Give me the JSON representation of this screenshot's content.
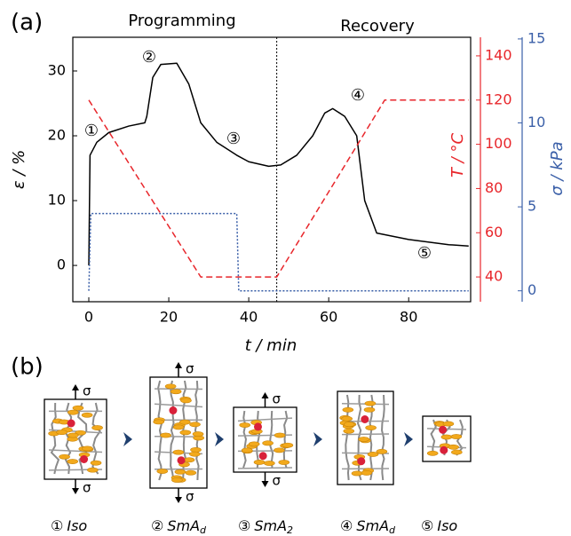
{
  "panel_labels": [
    "(a)",
    "(b)"
  ],
  "chart_data": {
    "type": "line",
    "xlabel": "t  / min",
    "ylabel": "ε / %",
    "y2label": "T / °C",
    "y3label": "σ / kPa",
    "xlim": [
      -4,
      95.5
    ],
    "xticks": [
      0,
      20,
      40,
      60,
      80
    ],
    "ylim": [
      -5.6,
      35.2
    ],
    "yticks": [
      0,
      10,
      20,
      30
    ],
    "y2lim": [
      28.8,
      148.4
    ],
    "y2ticks": [
      40,
      60,
      80,
      100,
      120,
      140
    ],
    "y3lim": [
      -0.65,
      15.1
    ],
    "y3ticks": [
      0,
      5,
      10,
      15
    ],
    "divider_x": 47,
    "phase_labels": [
      "Programming",
      "Recovery"
    ],
    "annotations": [
      "①",
      "②",
      "③",
      "④",
      "⑤"
    ],
    "series": [
      {
        "color": "#000000",
        "style": "solid",
        "x": [
          0,
          0.3,
          2,
          5,
          10,
          14,
          14.5,
          16,
          18,
          22,
          25,
          28,
          32,
          37,
          40,
          45,
          48,
          52,
          56,
          59,
          61,
          64,
          67,
          69,
          72,
          80,
          90,
          95
        ],
        "values": [
          0,
          17,
          19,
          20.5,
          21.5,
          22,
          23,
          29,
          31,
          31.2,
          28,
          22,
          19,
          17,
          16,
          15.3,
          15.5,
          17,
          20,
          23.5,
          24.2,
          23,
          20,
          10,
          5,
          4,
          3.2,
          3
        ]
      },
      {
        "color": "#e8262b",
        "style": "dashed",
        "axis": "y2",
        "x": [
          0,
          28,
          47,
          74,
          95
        ],
        "values": [
          120,
          40,
          40,
          120,
          120
        ]
      },
      {
        "color": "#3a5fa8",
        "style": "dotted",
        "axis": "y3",
        "x": [
          0,
          0.5,
          37,
          37.5,
          95
        ],
        "values": [
          0,
          4.6,
          4.6,
          0,
          0
        ]
      }
    ]
  },
  "diagram": {
    "stress_symbol": "σ",
    "stages": [
      {
        "number": "①",
        "name": "Iso"
      },
      {
        "number": "②",
        "name": "SmA",
        "sub": "d"
      },
      {
        "number": "③",
        "name": "SmA",
        "sub": "2"
      },
      {
        "number": "④",
        "name": "SmA",
        "sub": "d"
      },
      {
        "number": "⑤",
        "name": "Iso"
      }
    ]
  }
}
